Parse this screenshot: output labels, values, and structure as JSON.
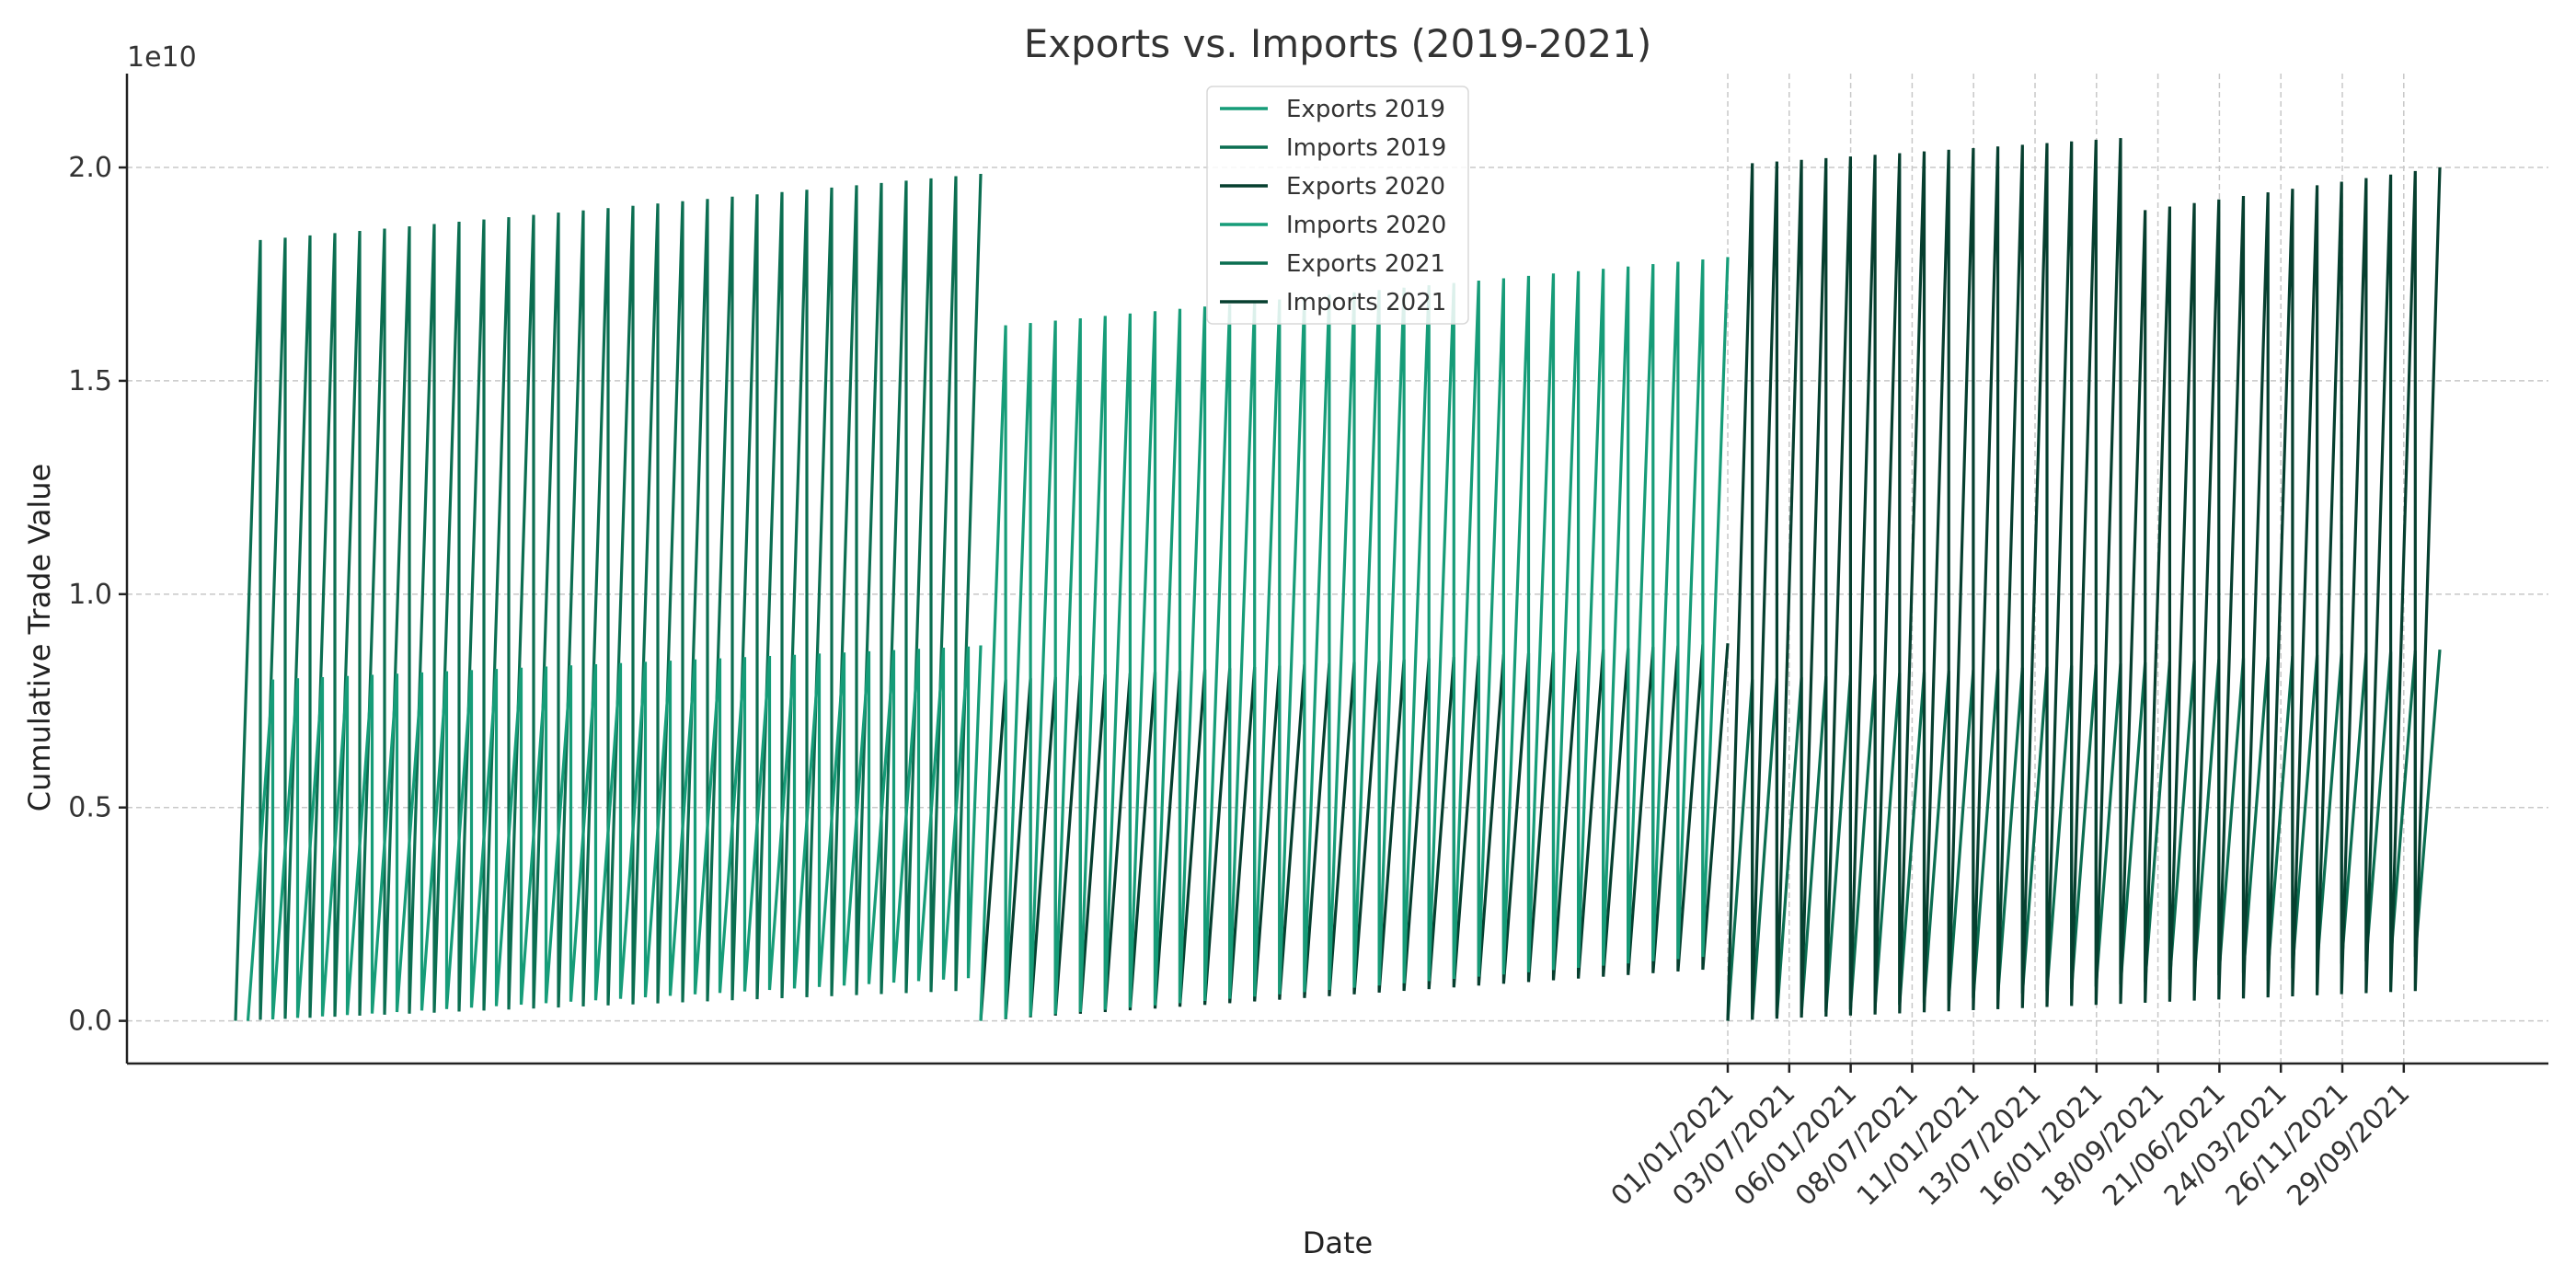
{
  "chart_data": {
    "type": "line",
    "title": "Exports vs. Imports (2019-2021)",
    "xlabel": "Date",
    "ylabel": "Cumulative Trade Value",
    "y_offset_label": "1e10",
    "ylim": [
      -0.1,
      2.22
    ],
    "yticks": [
      0.0,
      0.5,
      1.0,
      1.5,
      2.0
    ],
    "ytick_labels": [
      "0.0",
      "0.5",
      "1.0",
      "1.5",
      "2.0"
    ],
    "xticks_labels": [
      "01/01/2021",
      "03/07/2021",
      "06/01/2021",
      "08/07/2021",
      "11/01/2021",
      "13/07/2021",
      "16/01/2021",
      "18/09/2021",
      "21/06/2021",
      "24/03/2021",
      "26/11/2021",
      "29/09/2021"
    ],
    "grid": true,
    "legend_placement": "upper center",
    "colors": [
      "#169c78",
      "#0b6e51",
      "#063f2f",
      "#169c78",
      "#0b6e51",
      "#063f2f"
    ],
    "series": [
      {
        "name": "Exports 2019",
        "segment": 0,
        "kind": "import",
        "period_count": 30,
        "peak_start": 0.8,
        "peak_end": 0.88,
        "start": 0.0,
        "trough_end": 0.1,
        "visible": false
      },
      {
        "name": "Imports 2019",
        "segment": 0,
        "kind": "export",
        "period_count": 30,
        "peak_start": 1.83,
        "peak_end": 1.985,
        "start": 0.0,
        "trough_end": 0.07
      },
      {
        "name": "Exports 2020",
        "segment": 1,
        "kind": "import",
        "period_count": 30,
        "peak_start": 0.8,
        "peak_end": 0.885,
        "start": 0.0,
        "trough_end": 0.12
      },
      {
        "name": "Imports 2020",
        "segment": 1,
        "kind": "export",
        "period_count": 30,
        "peak_start": 1.63,
        "peak_end": 1.79,
        "start": 0.0,
        "trough_end": 0.15
      },
      {
        "name": "Exports 2021",
        "segment": 2,
        "kind": "import",
        "period_count": 29,
        "peak_start": 0.8,
        "peak_end": 0.87,
        "start": 0.0,
        "trough_end": 0.15
      },
      {
        "name": "Imports 2021",
        "segment": 2,
        "kind": "export",
        "period_count": 29,
        "peak_start": 2.01,
        "peak_end": 2.12,
        "start": 0.0,
        "trough_end": 0.07,
        "drop_to": 1.9,
        "drop_after": 16,
        "final": 1.78
      }
    ]
  }
}
